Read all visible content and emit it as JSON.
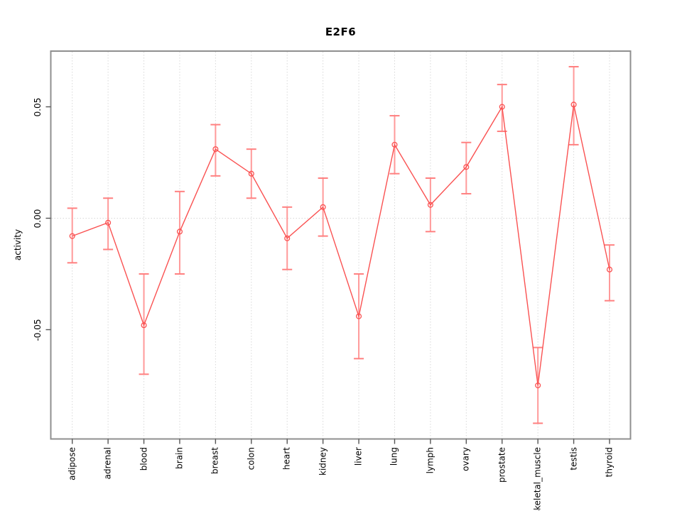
{
  "chart_data": {
    "type": "line",
    "title": "E2F6",
    "xlabel": "",
    "ylabel": "activity",
    "categories": [
      "adipose",
      "adrenal",
      "blood",
      "brain",
      "breast",
      "colon",
      "heart",
      "kidney",
      "liver",
      "lung",
      "lymph",
      "ovary",
      "prostate",
      "skeletal_muscle",
      "testis",
      "thyroid"
    ],
    "series": [
      {
        "name": "activity",
        "values": [
          -0.008,
          -0.002,
          -0.048,
          -0.006,
          0.031,
          0.02,
          -0.009,
          0.005,
          -0.044,
          0.033,
          0.006,
          0.023,
          0.05,
          -0.075,
          0.051,
          -0.023
        ],
        "error_upper": [
          0.0045,
          0.009,
          -0.025,
          0.012,
          0.042,
          0.031,
          0.005,
          0.018,
          -0.025,
          0.046,
          0.018,
          0.034,
          0.06,
          -0.058,
          0.068,
          -0.012
        ],
        "error_lower": [
          -0.02,
          -0.014,
          -0.07,
          -0.025,
          0.019,
          0.009,
          -0.023,
          -0.008,
          -0.063,
          0.02,
          -0.006,
          0.011,
          0.039,
          -0.092,
          0.033,
          -0.037
        ]
      }
    ],
    "yticks": {
      "values": [
        0.05,
        0.0,
        -0.05
      ],
      "labels": [
        "0.05",
        "0.00",
        "-0.05"
      ]
    },
    "ylim": [
      -0.099,
      0.075
    ],
    "grid": {
      "vertical": "dotted line at every category",
      "horizontal": "dotted line at zero only"
    },
    "legend_position": "none",
    "marker": "open-circle",
    "colors": {
      "line": "#fa5252",
      "marker": "#fa5252",
      "error_bar": "#ff9a9a",
      "error_cap": "#ff8080",
      "gridline": "#d8d8d8",
      "plot_border": "#8f8f8f",
      "tick": "#555555",
      "text": "#000000",
      "background": "#ffffff"
    }
  }
}
